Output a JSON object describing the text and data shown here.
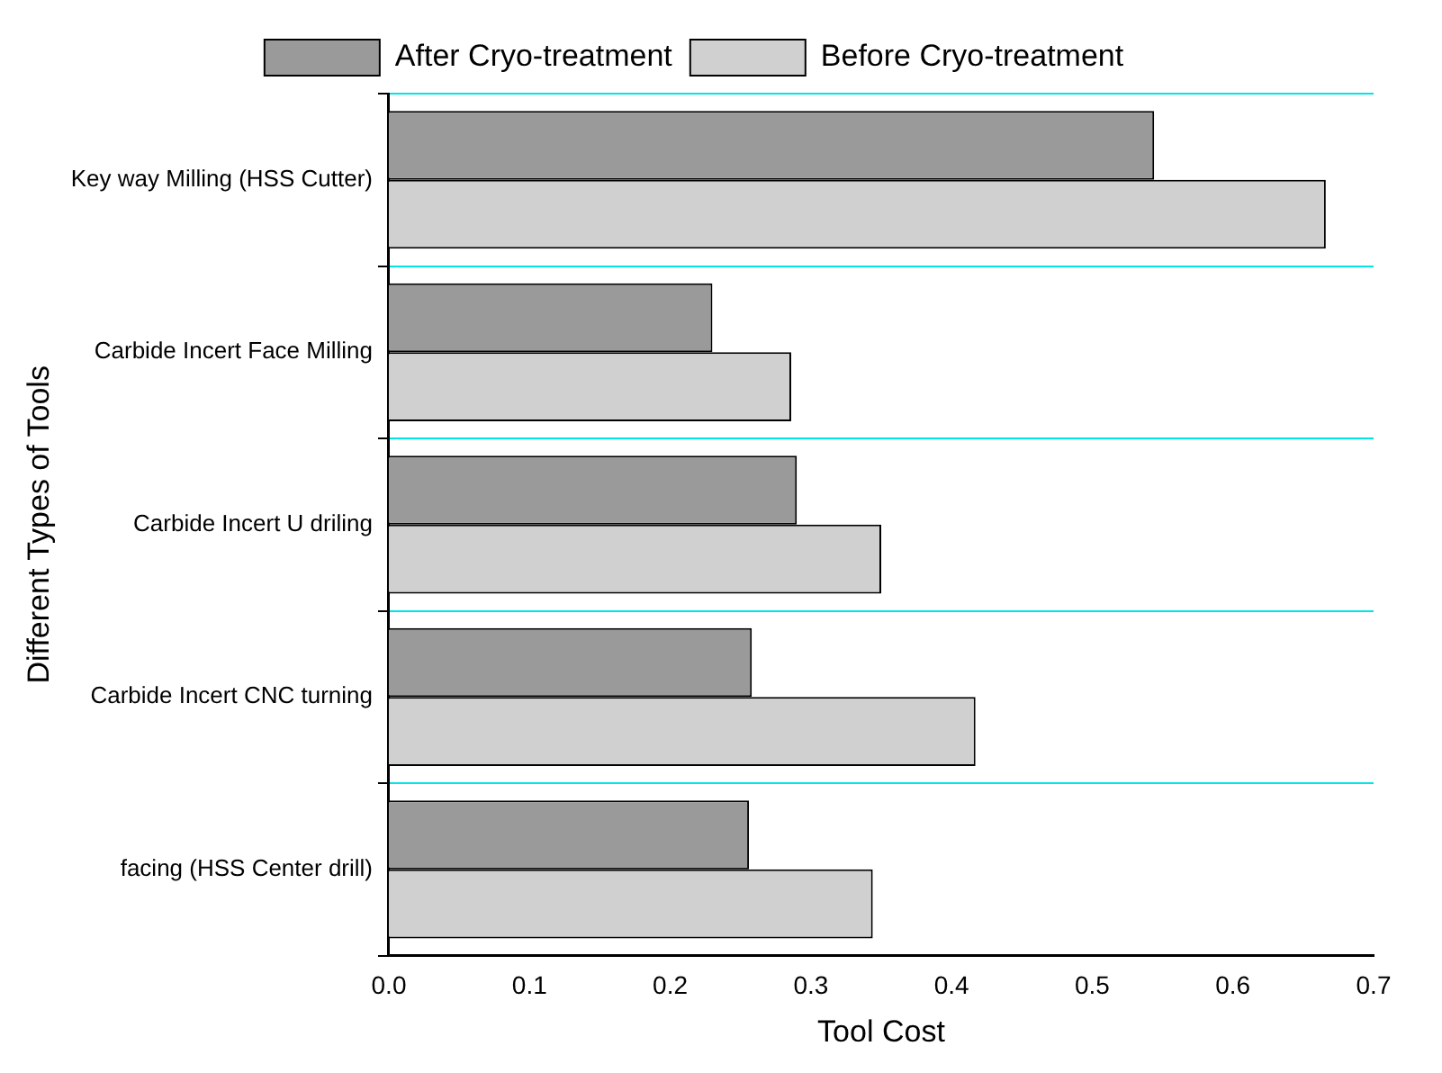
{
  "chart_data": {
    "type": "bar",
    "orientation": "horizontal",
    "xlabel": "Tool Cost",
    "ylabel": "Different Types of Tools",
    "categories": [
      "Key way Milling (HSS Cutter)",
      "Carbide Incert Face Milling",
      "Carbide Incert U driling",
      "Carbide Incert CNC turning",
      "facing (HSS Center drill)"
    ],
    "series": [
      {
        "name": "After Cryo-treatment",
        "color": "#9a9a9a",
        "values": [
          0.544,
          0.23,
          0.29,
          0.258,
          0.256
        ]
      },
      {
        "name": "Before Cryo-treatment",
        "color": "#d0d0d0",
        "values": [
          0.666,
          0.286,
          0.35,
          0.417,
          0.344
        ]
      }
    ],
    "xlim": [
      0,
      0.7
    ],
    "xticks": [
      {
        "value": 0,
        "label": "0.0"
      },
      0.1,
      0.2,
      0.3,
      0.4,
      0.5,
      0.6,
      0.7
    ],
    "grid": "y",
    "legend": "top"
  }
}
